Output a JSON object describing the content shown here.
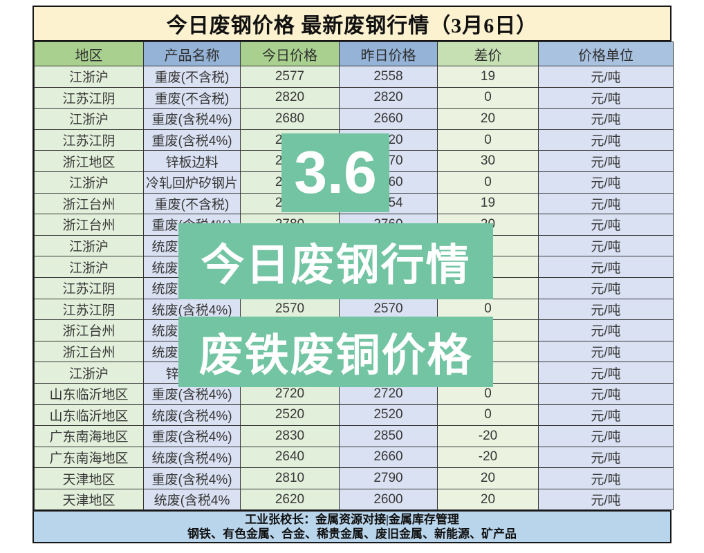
{
  "title": "今日废钢价格 最新废钢行情（3月6日）",
  "table": {
    "headers": [
      "地区",
      "产品名称",
      "今日价格",
      "昨日价格",
      "差价",
      "价格单位"
    ],
    "rows": [
      [
        "江浙沪",
        "重废(不含税)",
        "2577",
        "2558",
        "19",
        "元/吨"
      ],
      [
        "江苏江阴",
        "重废(不含税)",
        "2820",
        "2820",
        "0",
        "元/吨"
      ],
      [
        "江浙沪",
        "重废(含税4%)",
        "2680",
        "2660",
        "20",
        "元/吨"
      ],
      [
        "江苏江阴",
        "重废(含税4%)",
        "2820",
        "2820",
        "0",
        "元/吨"
      ],
      [
        "浙江地区",
        "锌板边料",
        "2800",
        "2770",
        "30",
        "元/吨"
      ],
      [
        "江浙沪",
        "冷轧回炉矽钢片",
        "2860",
        "2860",
        "0",
        "元/吨"
      ],
      [
        "浙江台州",
        "重废(不含税)",
        "2673",
        "2654",
        "19",
        "元/吨"
      ],
      [
        "浙江台州",
        "重废(含税4%)",
        "2780",
        "2760",
        "20",
        "元/吨"
      ],
      [
        "江浙沪",
        "统废(含税4%)",
        "",
        "",
        "",
        "元/吨"
      ],
      [
        "江浙沪",
        "统废(含税4%)",
        "",
        "",
        "",
        "元/吨"
      ],
      [
        "江苏江阴",
        "统废(含税4%)",
        "",
        "",
        "",
        "元/吨"
      ],
      [
        "江苏江阴",
        "统废(含税4%)",
        "2570",
        "2570",
        "0",
        "元/吨"
      ],
      [
        "浙江台州",
        "统废(含税4%)",
        "",
        "",
        "",
        "元/吨"
      ],
      [
        "浙江台州",
        "统废(含税4%)",
        "",
        "",
        "",
        "元/吨"
      ],
      [
        "江浙沪",
        "锌板边料",
        "",
        "",
        "",
        "元/吨"
      ],
      [
        "山东临沂地区",
        "重废(含税4%)",
        "2720",
        "2720",
        "0",
        "元/吨"
      ],
      [
        "山东临沂地区",
        "统废(含税4%)",
        "2520",
        "2520",
        "0",
        "元/吨"
      ],
      [
        "广东南海地区",
        "重废(含税4%)",
        "2830",
        "2850",
        "-20",
        "元/吨"
      ],
      [
        "广东南海地区",
        "统废(含税4%)",
        "2640",
        "2660",
        "-20",
        "元/吨"
      ],
      [
        "天津地区",
        "重废(含税4%)",
        "2810",
        "2790",
        "20",
        "元/吨"
      ],
      [
        "天津地区",
        "统废(含税4%",
        "2620",
        "2600",
        "20",
        "元/吨"
      ]
    ]
  },
  "watermarks": {
    "date_badge": "3.6",
    "line1": "今日废钢行情",
    "line2": "废铁废铜价格"
  },
  "footer": {
    "line1": "工业张校长：金属资源对接|金属库存管理",
    "line2": "钢铁、有色金属、合金、稀贵金属、废旧金属、新能源、矿产品"
  },
  "colors": {
    "title_bg": "#fcf2cf",
    "header_green": "#a9d08e",
    "header_blue": "#95b3d7",
    "header_green_light": "#c6e0b4",
    "header_blue_light": "#a9c2e0",
    "cell_green": "#e2efda",
    "cell_lavender": "#d9e1f2",
    "cell_green_light": "#ebf3e0",
    "footer_bg": "#b9d5ec",
    "watermark_green": "#72c4a2",
    "border": "#343434"
  }
}
